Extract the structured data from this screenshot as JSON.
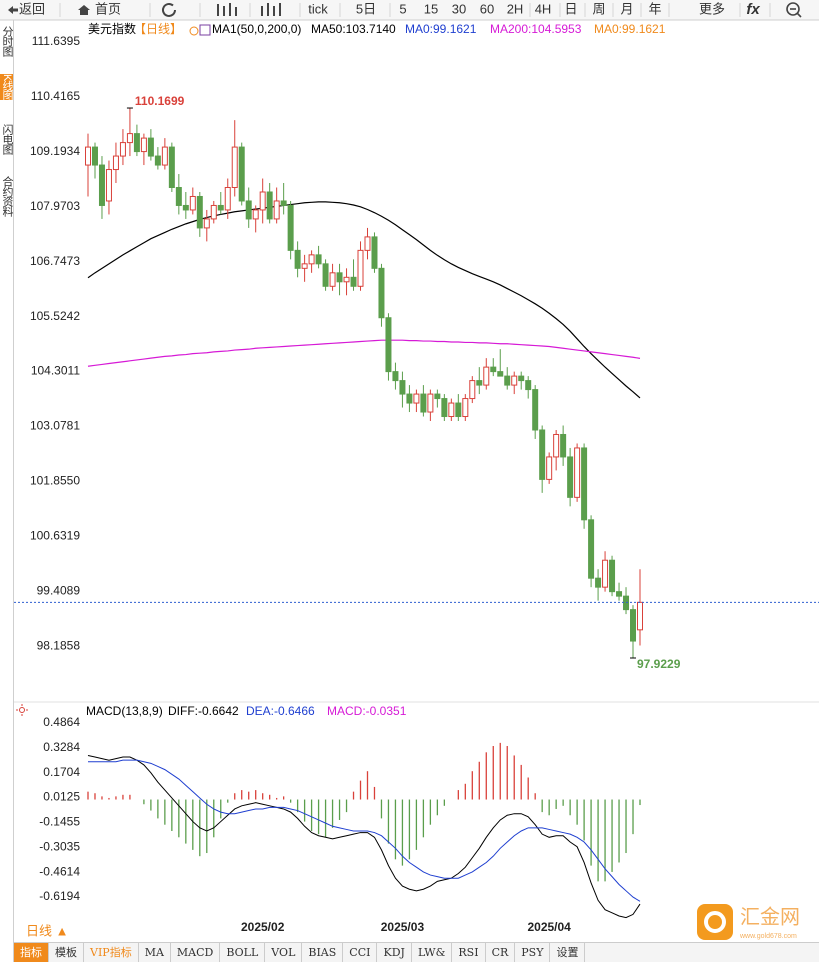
{
  "toolbar": [
    "返回",
    "首页",
    "tick",
    "5日",
    "5",
    "15",
    "30",
    "60",
    "2H",
    "4H",
    "日",
    "周",
    "月",
    "年",
    "更多",
    "fx"
  ],
  "side_tabs": [
    "分时图",
    "K线图",
    "闪电图",
    "合约资料"
  ],
  "period_selector": "日线 ▲",
  "indicator_tabs": [
    "指标",
    "模板",
    "VIP指标",
    "MA",
    "MACD",
    "BOLL",
    "VOL",
    "BIAS",
    "CCI",
    "KDJ",
    "LW&",
    "RSI",
    "CR",
    "PSY",
    "设置"
  ],
  "watermark": {
    "name": "汇金网",
    "url": "www.gold678.com"
  },
  "chart_data": [
    {
      "type": "candlestick",
      "title": "美元指数",
      "period": "【日线】",
      "indicator": "MA1(50,0,200,0)",
      "legend": [
        {
          "text": "MA50:103.7140",
          "color": "#000000"
        },
        {
          "text": "MA0:99.1621",
          "color": "#1f3fd0"
        },
        {
          "text": "MA200:104.5953",
          "color": "#d61ad6"
        },
        {
          "text": "MA0:99.1621",
          "color": "#f08a1c"
        }
      ],
      "high_label": "110.1699",
      "low_label": "97.9229",
      "up_color": "#d9413a",
      "down_color": "#5b9e4c",
      "last_line_color": "#2f5fd0",
      "candles": [
        [
          108.9,
          109.6,
          108.2,
          109.3
        ],
        [
          109.3,
          109.4,
          108.6,
          108.9
        ],
        [
          108.9,
          109.1,
          107.7,
          108.0
        ],
        [
          108.1,
          109.0,
          107.8,
          108.8
        ],
        [
          108.8,
          109.4,
          108.5,
          109.1
        ],
        [
          109.1,
          109.7,
          108.9,
          109.4
        ],
        [
          109.4,
          110.1699,
          109.1,
          109.6
        ],
        [
          109.6,
          109.8,
          109.1,
          109.2
        ],
        [
          109.2,
          109.6,
          108.9,
          109.5
        ],
        [
          109.5,
          109.7,
          109.0,
          109.1
        ],
        [
          109.1,
          109.3,
          108.8,
          108.9
        ],
        [
          108.9,
          109.5,
          108.8,
          109.3
        ],
        [
          109.3,
          109.4,
          108.3,
          108.4
        ],
        [
          108.4,
          108.7,
          107.8,
          108.0
        ],
        [
          108.0,
          108.3,
          107.7,
          107.9
        ],
        [
          107.9,
          108.4,
          107.8,
          108.2
        ],
        [
          108.2,
          108.3,
          107.3,
          107.5
        ],
        [
          107.5,
          107.9,
          107.2,
          107.7
        ],
        [
          107.7,
          108.1,
          107.6,
          108.0
        ],
        [
          108.0,
          108.3,
          107.8,
          107.9
        ],
        [
          107.9,
          108.6,
          107.7,
          108.4
        ],
        [
          108.4,
          109.9,
          108.2,
          109.3
        ],
        [
          109.3,
          109.4,
          108.0,
          108.1
        ],
        [
          108.1,
          108.4,
          107.5,
          107.7
        ],
        [
          107.7,
          108.0,
          107.4,
          107.9
        ],
        [
          107.9,
          108.6,
          107.6,
          108.3
        ],
        [
          108.3,
          108.5,
          107.6,
          107.7
        ],
        [
          107.7,
          108.4,
          107.6,
          108.1
        ],
        [
          108.1,
          108.5,
          107.8,
          108.0
        ],
        [
          108.0,
          108.1,
          106.8,
          107.0
        ],
        [
          107.0,
          107.2,
          106.4,
          106.6
        ],
        [
          106.6,
          106.9,
          106.3,
          106.7
        ],
        [
          106.7,
          107.0,
          106.5,
          106.9
        ],
        [
          106.9,
          107.1,
          106.6,
          106.7
        ],
        [
          106.7,
          106.8,
          106.1,
          106.2
        ],
        [
          106.2,
          106.7,
          106.1,
          106.5
        ],
        [
          106.5,
          106.7,
          106.0,
          106.3
        ],
        [
          106.3,
          106.6,
          106.0,
          106.4
        ],
        [
          106.4,
          106.8,
          106.1,
          106.2
        ],
        [
          106.2,
          107.2,
          106.1,
          107.0
        ],
        [
          107.0,
          107.5,
          106.8,
          107.3
        ],
        [
          107.3,
          107.4,
          106.5,
          106.6
        ],
        [
          106.6,
          106.7,
          105.3,
          105.5
        ],
        [
          105.5,
          105.6,
          104.1,
          104.3
        ],
        [
          104.3,
          104.5,
          103.9,
          104.1
        ],
        [
          104.1,
          104.3,
          103.5,
          103.8
        ],
        [
          103.8,
          104.0,
          103.4,
          103.6
        ],
        [
          103.6,
          103.9,
          103.4,
          103.8
        ],
        [
          103.8,
          104.0,
          103.3,
          103.4
        ],
        [
          103.4,
          103.9,
          103.2,
          103.8
        ],
        [
          103.8,
          103.9,
          103.5,
          103.7
        ],
        [
          103.7,
          103.8,
          103.2,
          103.3
        ],
        [
          103.3,
          103.7,
          103.2,
          103.6
        ],
        [
          103.6,
          103.8,
          103.2,
          103.3
        ],
        [
          103.3,
          103.8,
          103.2,
          103.7
        ],
        [
          103.7,
          104.2,
          103.6,
          104.1
        ],
        [
          104.1,
          104.4,
          103.8,
          104.0
        ],
        [
          104.0,
          104.6,
          103.9,
          104.4
        ],
        [
          104.4,
          104.6,
          104.2,
          104.3
        ],
        [
          104.3,
          104.8,
          104.2,
          104.2
        ],
        [
          104.2,
          104.4,
          103.9,
          104.0
        ],
        [
          104.0,
          104.3,
          103.8,
          104.2
        ],
        [
          104.2,
          104.3,
          103.9,
          104.1
        ],
        [
          104.1,
          104.2,
          103.7,
          103.9
        ],
        [
          103.9,
          104.0,
          102.8,
          103.0
        ],
        [
          103.0,
          103.1,
          101.6,
          101.9
        ],
        [
          101.9,
          102.5,
          101.8,
          102.4
        ],
        [
          102.4,
          103.0,
          102.1,
          102.9
        ],
        [
          102.9,
          103.1,
          102.2,
          102.4
        ],
        [
          102.4,
          102.6,
          101.3,
          101.5
        ],
        [
          101.5,
          102.7,
          101.4,
          102.6
        ],
        [
          102.6,
          102.7,
          100.8,
          101.0
        ],
        [
          101.0,
          101.1,
          99.5,
          99.7
        ],
        [
          99.7,
          99.9,
          99.2,
          99.5
        ],
        [
          99.5,
          100.3,
          99.4,
          100.1
        ],
        [
          100.1,
          100.2,
          99.3,
          99.4
        ],
        [
          99.4,
          99.6,
          99.2,
          99.3
        ],
        [
          99.3,
          99.5,
          98.9,
          99.0
        ],
        [
          99.0,
          99.1,
          97.9229,
          98.3
        ],
        [
          98.55,
          99.9,
          98.2,
          99.1621
        ]
      ],
      "lines": [
        {
          "color": "#000000",
          "values": [
            106.39,
            106.5,
            106.6,
            106.7,
            106.8,
            106.9,
            106.99,
            107.08,
            107.17,
            107.26,
            107.33,
            107.4,
            107.47,
            107.53,
            107.59,
            107.64,
            107.69,
            107.73,
            107.77,
            107.8,
            107.83,
            107.86,
            107.88,
            107.9,
            107.92,
            107.94,
            107.96,
            107.98,
            108.0,
            108.02,
            108.04,
            108.06,
            108.07,
            108.08,
            108.08,
            108.07,
            108.06,
            108.04,
            108.01,
            107.97,
            107.91,
            107.84,
            107.76,
            107.67,
            107.57,
            107.46,
            107.35,
            107.24,
            107.12,
            107.0,
            106.89,
            106.79,
            106.7,
            106.62,
            106.55,
            106.48,
            106.42,
            106.36,
            106.3,
            106.23,
            106.15,
            106.07,
            105.99,
            105.9,
            105.81,
            105.71,
            105.6,
            105.48,
            105.35,
            105.2,
            105.03,
            104.86,
            104.7,
            104.55,
            104.4,
            104.26,
            104.12,
            103.98,
            103.85,
            103.714
          ]
        },
        {
          "color": "#d61ad6",
          "values": [
            104.42,
            104.44,
            104.46,
            104.48,
            104.5,
            104.52,
            104.54,
            104.56,
            104.58,
            104.6,
            104.62,
            104.64,
            104.65,
            104.67,
            104.68,
            104.7,
            104.71,
            104.72,
            104.74,
            104.75,
            104.76,
            104.78,
            104.79,
            104.8,
            104.82,
            104.83,
            104.84,
            104.85,
            104.86,
            104.87,
            104.88,
            104.89,
            104.9,
            104.91,
            104.92,
            104.93,
            104.94,
            104.95,
            104.96,
            104.97,
            104.98,
            104.99,
            105.0,
            105.0,
            105.0,
            105.0,
            104.99,
            104.99,
            104.98,
            104.98,
            104.97,
            104.97,
            104.96,
            104.96,
            104.95,
            104.95,
            104.94,
            104.94,
            104.93,
            104.92,
            104.92,
            104.91,
            104.9,
            104.89,
            104.88,
            104.87,
            104.86,
            104.84,
            104.82,
            104.8,
            104.78,
            104.76,
            104.74,
            104.72,
            104.7,
            104.68,
            104.66,
            104.64,
            104.62,
            104.5953
          ]
        }
      ],
      "ylim": [
        97.21,
        112.13
      ],
      "yticks": [
        111.6395,
        110.4165,
        109.1934,
        107.9703,
        106.7473,
        105.5242,
        104.3011,
        103.0781,
        {
          "value": 101.855,
          "label": "101.8550"
        },
        100.6319,
        99.4089,
        98.1858
      ],
      "grid": false
    },
    {
      "type": "macd",
      "title": "MACD(13,8,9)",
      "legend": [
        {
          "text": "DIFF:-0.6642",
          "color": "#000000"
        },
        {
          "text": "DEA:-0.6466",
          "color": "#1f3fd0"
        },
        {
          "text": "MACD:-0.0351",
          "color": "#d61ad6"
        }
      ],
      "categories": [
        null,
        null,
        null,
        null,
        null,
        null,
        null,
        null,
        null,
        null,
        null,
        null,
        null,
        null,
        null,
        null,
        null,
        null,
        null,
        null,
        null,
        null,
        null,
        null,
        null,
        "2025/02",
        null,
        null,
        null,
        null,
        null,
        null,
        null,
        null,
        null,
        null,
        null,
        null,
        null,
        null,
        null,
        null,
        null,
        null,
        null,
        "2025/03",
        null,
        null,
        null,
        null,
        null,
        null,
        null,
        null,
        null,
        null,
        null,
        null,
        null,
        null,
        null,
        null,
        null,
        null,
        null,
        null,
        "2025/04",
        null,
        null,
        null,
        null,
        null,
        null,
        null,
        null,
        null,
        null,
        null,
        null,
        null
      ],
      "histogram": [
        0.05,
        0.04,
        0.02,
        0.01,
        0.02,
        0.03,
        0.03,
        0.0,
        -0.03,
        -0.07,
        -0.12,
        -0.16,
        -0.2,
        -0.24,
        -0.28,
        -0.32,
        -0.36,
        -0.34,
        -0.24,
        -0.12,
        -0.02,
        0.04,
        0.06,
        0.05,
        0.06,
        0.04,
        0.03,
        0.01,
        0.02,
        -0.02,
        -0.08,
        -0.14,
        -0.2,
        -0.22,
        -0.24,
        -0.18,
        -0.13,
        -0.08,
        0.05,
        0.12,
        0.18,
        0.08,
        -0.12,
        -0.28,
        -0.38,
        -0.42,
        -0.38,
        -0.32,
        -0.24,
        -0.16,
        -0.1,
        -0.04,
        0.0,
        0.06,
        0.1,
        0.18,
        0.24,
        0.3,
        0.34,
        0.36,
        0.34,
        0.28,
        0.22,
        0.14,
        0.04,
        -0.08,
        -0.1,
        -0.06,
        -0.04,
        -0.1,
        -0.16,
        -0.26,
        -0.42,
        -0.52,
        -0.52,
        -0.46,
        -0.4,
        -0.34,
        -0.22,
        -0.0351
      ],
      "diff": [
        0.28,
        0.27,
        0.26,
        0.25,
        0.26,
        0.27,
        0.27,
        0.25,
        0.22,
        0.17,
        0.11,
        0.06,
        0.01,
        -0.04,
        -0.09,
        -0.14,
        -0.18,
        -0.2,
        -0.18,
        -0.14,
        -0.1,
        -0.06,
        -0.04,
        -0.03,
        -0.02,
        -0.03,
        -0.04,
        -0.05,
        -0.06,
        -0.08,
        -0.12,
        -0.17,
        -0.21,
        -0.23,
        -0.24,
        -0.25,
        -0.24,
        -0.23,
        -0.22,
        -0.21,
        -0.21,
        -0.24,
        -0.32,
        -0.42,
        -0.5,
        -0.55,
        -0.57,
        -0.58,
        -0.57,
        -0.55,
        -0.52,
        -0.51,
        -0.5,
        -0.47,
        -0.43,
        -0.37,
        -0.31,
        -0.24,
        -0.18,
        -0.13,
        -0.1,
        -0.09,
        -0.09,
        -0.11,
        -0.16,
        -0.22,
        -0.24,
        -0.23,
        -0.23,
        -0.27,
        -0.3,
        -0.4,
        -0.53,
        -0.64,
        -0.7,
        -0.72,
        -0.74,
        -0.75,
        -0.73,
        -0.6642
      ],
      "dea": [
        0.24,
        0.24,
        0.24,
        0.24,
        0.24,
        0.25,
        0.25,
        0.25,
        0.24,
        0.23,
        0.21,
        0.19,
        0.16,
        0.13,
        0.09,
        0.05,
        0.01,
        -0.03,
        -0.06,
        -0.08,
        -0.09,
        -0.09,
        -0.08,
        -0.07,
        -0.06,
        -0.06,
        -0.05,
        -0.05,
        -0.05,
        -0.06,
        -0.07,
        -0.09,
        -0.11,
        -0.13,
        -0.15,
        -0.17,
        -0.18,
        -0.19,
        -0.2,
        -0.2,
        -0.2,
        -0.21,
        -0.23,
        -0.27,
        -0.31,
        -0.36,
        -0.4,
        -0.43,
        -0.46,
        -0.48,
        -0.49,
        -0.5,
        -0.5,
        -0.5,
        -0.48,
        -0.46,
        -0.43,
        -0.4,
        -0.36,
        -0.31,
        -0.27,
        -0.23,
        -0.2,
        -0.18,
        -0.18,
        -0.18,
        -0.19,
        -0.2,
        -0.21,
        -0.22,
        -0.24,
        -0.27,
        -0.32,
        -0.38,
        -0.44,
        -0.49,
        -0.54,
        -0.58,
        -0.62,
        -0.6466
      ],
      "diff_color": "#000000",
      "dea_color": "#1f3fd0",
      "up_color": "#d9413a",
      "down_color": "#5b9e4c",
      "ylim": [
        -0.7655,
        0.518
      ],
      "yticks": [
        0.4864,
        0.3284,
        0.1704,
        0.0125,
        -0.1455,
        -0.3035,
        -0.4614,
        -0.6194
      ]
    }
  ]
}
